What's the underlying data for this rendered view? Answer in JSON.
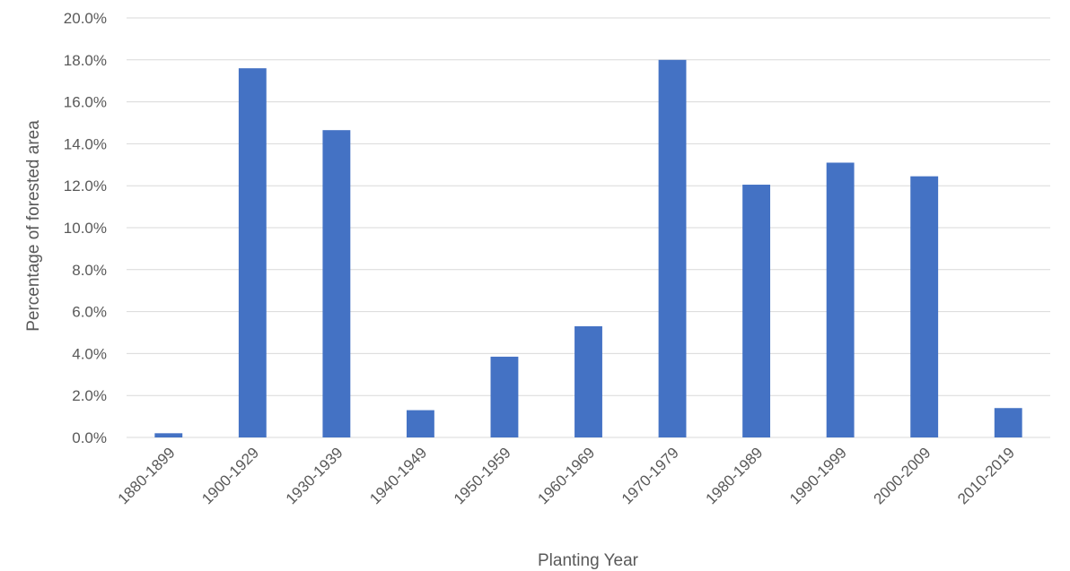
{
  "chart_data": {
    "type": "bar",
    "categories": [
      "1880-1899",
      "1900-1929",
      "1930-1939",
      "1940-1949",
      "1950-1959",
      "1960-1969",
      "1970-1979",
      "1980-1989",
      "1990-1999",
      "2000-2009",
      "2010-2019"
    ],
    "values": [
      0.2,
      17.6,
      14.65,
      1.3,
      3.85,
      5.3,
      18.0,
      12.05,
      13.1,
      12.45,
      1.4
    ],
    "xlabel": "Planting Year",
    "ylabel": "Percentage of forested area",
    "ylim": [
      0,
      20
    ],
    "yticks": [
      0,
      2,
      4,
      6,
      8,
      10,
      12,
      14,
      16,
      18,
      20
    ],
    "ytick_labels": [
      "0.0%",
      "2.0%",
      "4.0%",
      "6.0%",
      "8.0%",
      "10.0%",
      "12.0%",
      "14.0%",
      "16.0%",
      "18.0%",
      "20.0%"
    ],
    "bar_color": "#4472c4",
    "grid": true,
    "legend": "none"
  }
}
